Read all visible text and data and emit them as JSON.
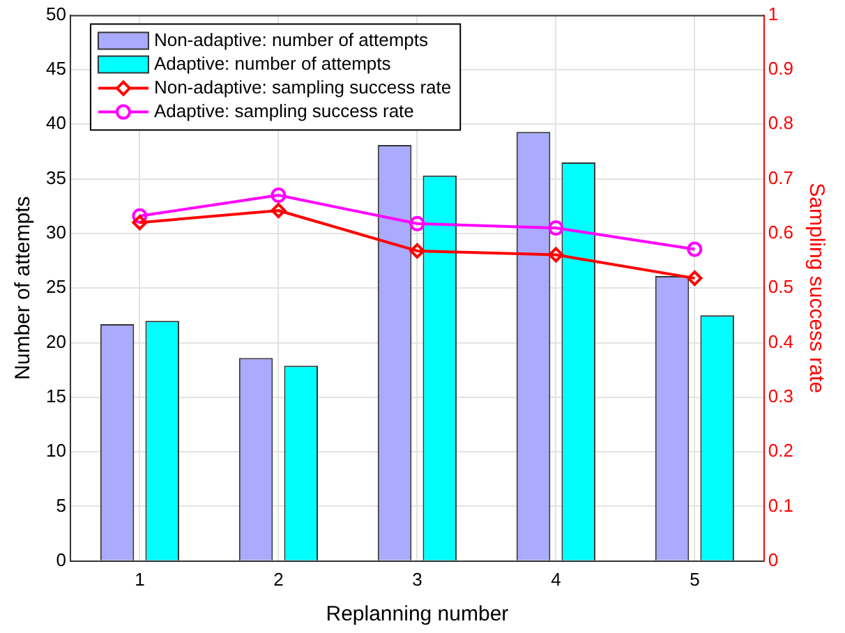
{
  "chart_data": {
    "type": "bar",
    "xlabel": "Replanning number",
    "ylabel": "Number of attempts",
    "y2label": "Sampling success rate",
    "categories": [
      "1",
      "2",
      "3",
      "4",
      "5"
    ],
    "series": [
      {
        "name": "Non-adaptive: number of attempts",
        "color": "#aaaaff",
        "values": [
          21.7,
          18.6,
          38.1,
          39.3,
          26.1
        ]
      },
      {
        "name": "Adaptive: number of attempts",
        "color": "#00ffff",
        "values": [
          22.0,
          17.9,
          35.3,
          36.5,
          22.5
        ]
      },
      {
        "name": "Non-adaptive: sampling success rate",
        "type": "line",
        "axis": "y2",
        "marker": "diamond",
        "color": "#ff0000",
        "values": [
          0.62,
          0.642,
          0.568,
          0.561,
          0.518
        ]
      },
      {
        "name": "Adaptive: sampling success rate",
        "type": "line",
        "axis": "y2",
        "marker": "circle",
        "color": "#ff00ff",
        "values": [
          0.632,
          0.67,
          0.618,
          0.61,
          0.571
        ]
      }
    ],
    "ylim": [
      0,
      50
    ],
    "yticks": [
      0,
      5,
      10,
      15,
      20,
      25,
      30,
      35,
      40,
      45,
      50
    ],
    "y2lim": [
      0,
      1
    ],
    "y2ticks": [
      0,
      0.1,
      0.2,
      0.3,
      0.4,
      0.5,
      0.6,
      0.7,
      0.8,
      0.9,
      1
    ],
    "grid": true,
    "legend": "top left"
  }
}
